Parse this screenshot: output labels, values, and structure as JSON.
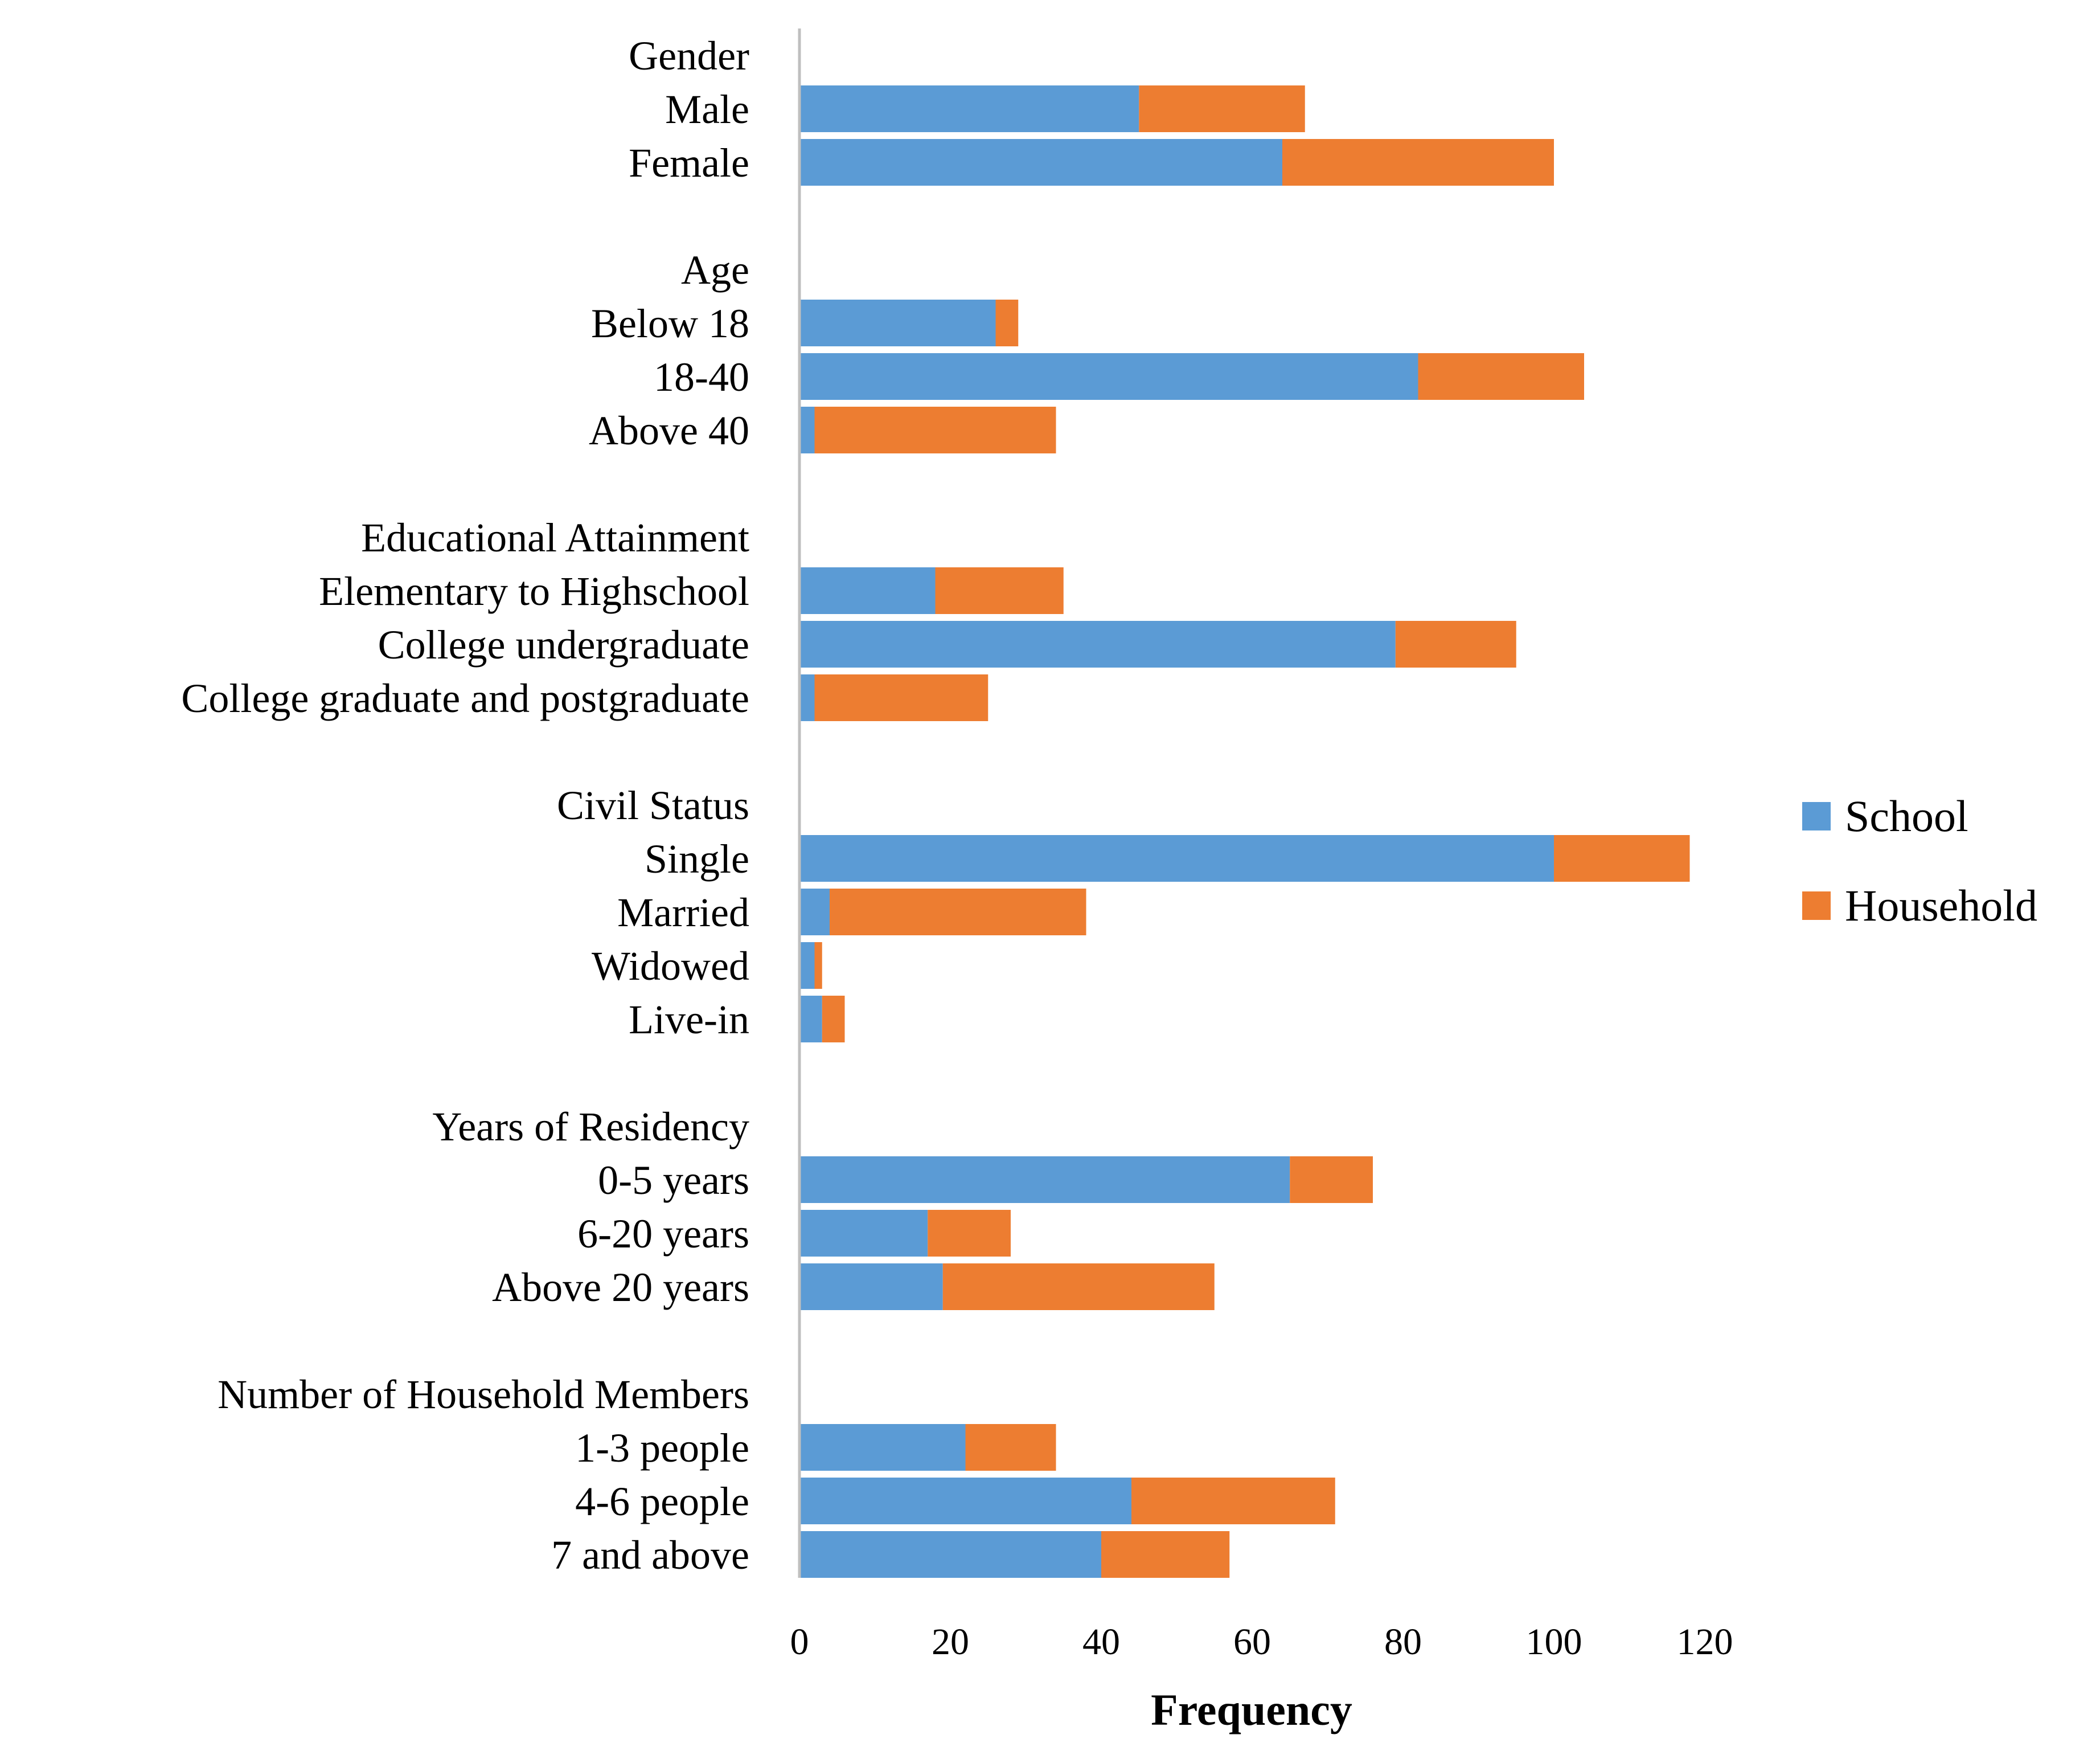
{
  "chart_data": {
    "type": "bar",
    "orientation": "horizontal",
    "stacked": true,
    "title": "",
    "xlabel": "Frequency",
    "ylabel": "",
    "xlim": [
      0,
      120
    ],
    "xticks": [
      0,
      20,
      40,
      60,
      80,
      100,
      120
    ],
    "grid": false,
    "legend_position": "right",
    "series": [
      {
        "name": "School",
        "color": "#5B9BD5"
      },
      {
        "name": "Household",
        "color": "#ED7D31"
      }
    ],
    "rows": [
      {
        "label": "Gender",
        "is_group_header": true
      },
      {
        "label": "Male",
        "school": 45,
        "household": 22
      },
      {
        "label": "Female",
        "school": 64,
        "household": 36
      },
      {
        "label": "",
        "is_spacer": true
      },
      {
        "label": "Age",
        "is_group_header": true
      },
      {
        "label": "Below 18",
        "school": 26,
        "household": 3
      },
      {
        "label": "18-40",
        "school": 82,
        "household": 22
      },
      {
        "label": "Above 40",
        "school": 2,
        "household": 32
      },
      {
        "label": "",
        "is_spacer": true
      },
      {
        "label": "Educational Attainment",
        "is_group_header": true
      },
      {
        "label": "Elementary to Highschool",
        "school": 18,
        "household": 17
      },
      {
        "label": "College undergraduate",
        "school": 79,
        "household": 16
      },
      {
        "label": "College graduate and postgraduate",
        "school": 2,
        "household": 23
      },
      {
        "label": "",
        "is_spacer": true
      },
      {
        "label": "Civil Status",
        "is_group_header": true
      },
      {
        "label": "Single",
        "school": 100,
        "household": 18
      },
      {
        "label": "Married",
        "school": 4,
        "household": 34
      },
      {
        "label": "Widowed",
        "school": 2,
        "household": 1
      },
      {
        "label": "Live-in",
        "school": 3,
        "household": 3
      },
      {
        "label": "",
        "is_spacer": true
      },
      {
        "label": "Years of Residency",
        "is_group_header": true
      },
      {
        "label": "0-5 years",
        "school": 65,
        "household": 11
      },
      {
        "label": "6-20 years",
        "school": 17,
        "household": 11
      },
      {
        "label": "Above 20 years",
        "school": 19,
        "household": 36
      },
      {
        "label": "",
        "is_spacer": true
      },
      {
        "label": "Number of Household Members",
        "is_group_header": true
      },
      {
        "label": "1-3 people",
        "school": 22,
        "household": 12
      },
      {
        "label": "4-6 people",
        "school": 44,
        "household": 27
      },
      {
        "label": "7 and above",
        "school": 40,
        "household": 17
      }
    ]
  }
}
